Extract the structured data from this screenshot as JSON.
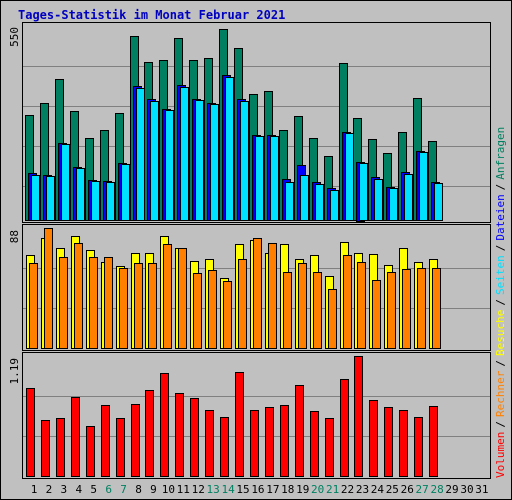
{
  "title": "Tages-Statistik im Monat Februar 2021",
  "legend_separator": "/",
  "chart_data": [
    {
      "type": "bar",
      "ylim": [
        0,
        550
      ],
      "yticks": [
        550
      ],
      "series": [
        {
          "name": "Anfragen",
          "color": "#008060",
          "values": [
            296,
            330,
            398,
            307,
            231,
            254,
            302,
            519,
            446,
            451,
            513,
            451,
            457,
            539,
            485,
            355,
            364,
            254,
            293,
            231,
            180,
            443,
            288,
            228,
            189,
            248,
            344,
            223,
            null,
            null,
            null
          ]
        },
        {
          "name": "Dateien",
          "color": "#0000ff",
          "values": [
            132,
            128,
            218,
            150,
            114,
            110,
            162,
            378,
            340,
            314,
            380,
            342,
            331,
            408,
            340,
            241,
            241,
            116,
            155,
            106,
            90,
            249,
            165,
            120,
            94,
            134,
            196,
            108,
            null,
            null,
            null
          ]
        },
        {
          "name": "Seiten",
          "color": "#00e0ff",
          "values": [
            127,
            124,
            214,
            147,
            110,
            107,
            158,
            372,
            336,
            310,
            375,
            338,
            327,
            403,
            336,
            237,
            237,
            107,
            127,
            102,
            85,
            245,
            161,
            116,
            90,
            130,
            192,
            104,
            null,
            null,
            null
          ]
        }
      ]
    },
    {
      "type": "bar",
      "ylim": [
        0,
        88
      ],
      "yticks": [
        88
      ],
      "series": [
        {
          "name": "Besuche",
          "color": "#ffff00",
          "values": [
            68,
            81,
            73,
            82,
            72,
            63,
            60,
            70,
            70,
            82,
            73,
            64,
            65,
            51,
            76,
            79,
            70,
            76,
            65,
            68,
            53,
            78,
            70,
            69,
            61,
            73,
            63,
            65,
            null,
            null,
            null
          ]
        },
        {
          "name": "Rechner",
          "color": "#ff8000",
          "values": [
            62,
            88,
            67,
            77,
            67,
            67,
            59,
            62,
            62,
            76,
            73,
            55,
            57,
            49,
            65,
            81,
            77,
            56,
            62,
            56,
            43,
            68,
            63,
            50,
            56,
            58,
            59,
            59,
            null,
            null,
            null
          ]
        }
      ]
    },
    {
      "type": "bar",
      "ylim": [
        0,
        1.19
      ],
      "yticks": [
        1.19
      ],
      "categories": [
        "1",
        "2",
        "3",
        "4",
        "5",
        "6",
        "7",
        "8",
        "9",
        "10",
        "11",
        "12",
        "13",
        "14",
        "15",
        "16",
        "17",
        "18",
        "19",
        "20",
        "21",
        "22",
        "23",
        "24",
        "25",
        "26",
        "27",
        "28",
        "29",
        "30",
        "31"
      ],
      "series": [
        {
          "name": "Volumen",
          "color": "#ff0000",
          "values": [
            0.87,
            0.56,
            0.58,
            0.78,
            0.5,
            0.7,
            0.58,
            0.71,
            0.85,
            1.02,
            0.82,
            0.77,
            0.65,
            0.59,
            1.03,
            0.65,
            0.68,
            0.7,
            0.9,
            0.64,
            0.58,
            0.96,
            1.19,
            0.75,
            0.68,
            0.65,
            0.59,
            0.69,
            null,
            null,
            null
          ]
        }
      ]
    }
  ]
}
